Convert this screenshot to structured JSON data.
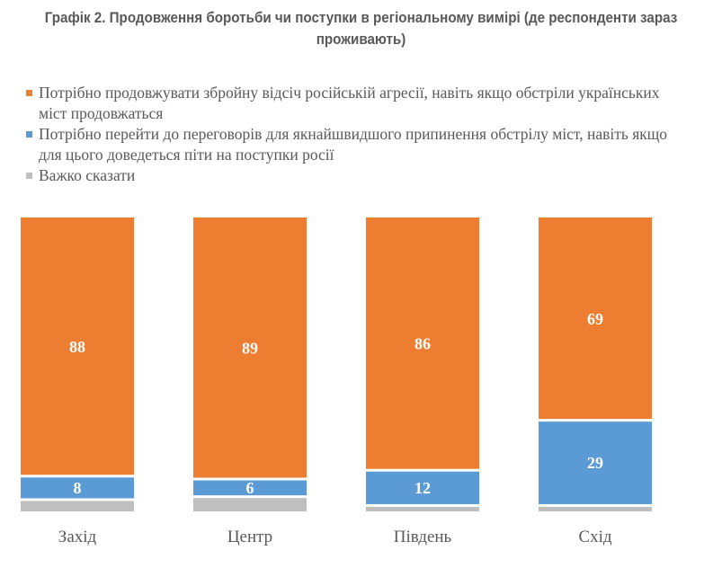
{
  "chart_data": {
    "type": "bar",
    "stacked": true,
    "normalized_percent": true,
    "title": "Графік 2. Продовження боротьби чи поступки в регіональному вимірі (де респонденти зараз проживають)",
    "xlabel": "",
    "ylabel": "",
    "ylim": [
      0,
      100
    ],
    "grid": false,
    "legend_position": "top",
    "categories": [
      "Захід",
      "Центр",
      "Південь",
      "Схід"
    ],
    "series": [
      {
        "name": "Потрібно продовжувати збройну відсіч російській агресії, навіть якщо обстріли українських міст продовжаться",
        "color": "#ED7D31",
        "values": [
          88,
          89,
          86,
          69
        ],
        "labels_shown": true
      },
      {
        "name": "Потрібно перейти до переговорів для якнайшвидшого припинення обстрілу міст, навіть якщо для цього доведеться піти на поступки росії",
        "color": "#5B9BD5",
        "values": [
          8,
          6,
          12,
          29
        ],
        "labels_shown": true
      },
      {
        "name": "Важко сказати",
        "color": "#BFBFBF",
        "values": [
          4,
          5,
          2,
          2
        ],
        "labels_shown": false
      }
    ]
  }
}
